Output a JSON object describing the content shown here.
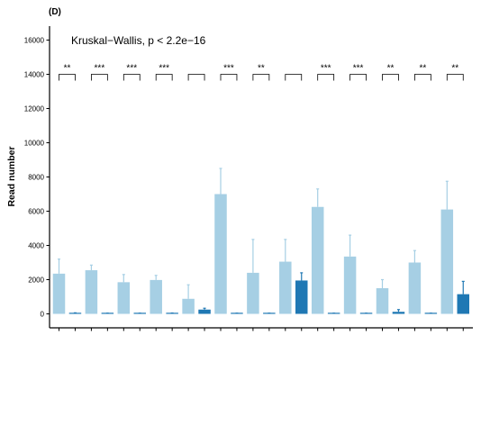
{
  "chart_data": {
    "type": "bar",
    "panel_label": "(D)",
    "ylabel": "Read number",
    "xlabel": "",
    "annotation": "Kruskal−Wallis, p < 2.2e−16",
    "ylim": [
      -700,
      16800
    ],
    "yticks": [
      0,
      2000,
      4000,
      6000,
      8000,
      10000,
      12000,
      14000,
      16000
    ],
    "ytick_labels": [
      "0",
      "2000",
      "4000",
      "6000",
      "8000",
      "10000",
      "12000",
      "14000",
      "16000"
    ],
    "grid": false,
    "colors": {
      "light": "#a6cfe4",
      "dark": "#1f78b4",
      "axis": "#000000"
    },
    "bars": [
      {
        "value": 2350,
        "err": 3200,
        "tone": "light"
      },
      {
        "value": 40,
        "err": 60,
        "tone": "dark"
      },
      {
        "value": 2550,
        "err": 2850,
        "tone": "light"
      },
      {
        "value": 20,
        "err": 40,
        "tone": "dark"
      },
      {
        "value": 1850,
        "err": 2300,
        "tone": "light"
      },
      {
        "value": 20,
        "err": 40,
        "tone": "dark"
      },
      {
        "value": 1980,
        "err": 2250,
        "tone": "light"
      },
      {
        "value": 30,
        "err": 50,
        "tone": "dark"
      },
      {
        "value": 880,
        "err": 1700,
        "tone": "light"
      },
      {
        "value": 250,
        "err": 330,
        "tone": "dark"
      },
      {
        "value": 7000,
        "err": 8500,
        "tone": "light"
      },
      {
        "value": 20,
        "err": 40,
        "tone": "dark"
      },
      {
        "value": 2400,
        "err": 4350,
        "tone": "light"
      },
      {
        "value": 20,
        "err": 40,
        "tone": "dark"
      },
      {
        "value": 3050,
        "err": 4350,
        "tone": "light"
      },
      {
        "value": 1950,
        "err": 2400,
        "tone": "dark"
      },
      {
        "value": 6250,
        "err": 7300,
        "tone": "light"
      },
      {
        "value": 20,
        "err": 40,
        "tone": "dark"
      },
      {
        "value": 3350,
        "err": 4600,
        "tone": "light"
      },
      {
        "value": 20,
        "err": 40,
        "tone": "dark"
      },
      {
        "value": 1500,
        "err": 2000,
        "tone": "light"
      },
      {
        "value": 120,
        "err": 250,
        "tone": "dark"
      },
      {
        "value": 3000,
        "err": 3700,
        "tone": "light"
      },
      {
        "value": 20,
        "err": 40,
        "tone": "dark"
      },
      {
        "value": 6100,
        "err": 7750,
        "tone": "light"
      },
      {
        "value": 1150,
        "err": 1900,
        "tone": "dark"
      }
    ],
    "significance": [
      "**",
      "***",
      "***",
      "***",
      "",
      "***",
      "**",
      "",
      "***",
      "***",
      "**",
      "**",
      "**"
    ],
    "bracket_y": 14000
  }
}
